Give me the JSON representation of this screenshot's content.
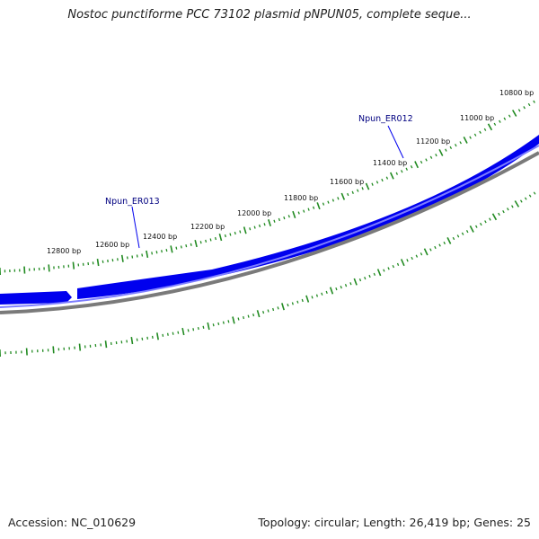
{
  "title": "Nostoc punctiforme PCC 73102 plasmid pNPUN05, complete seque...",
  "accession": "Accession: NC_010629",
  "summary": "Topology: circular; Length: 26,419 bp; Genes: 25",
  "colors": {
    "gene": "#0000ee",
    "gene_light": "#7d7dff",
    "backbone": "#7a7a7a",
    "ticks": "#228b22",
    "label": "#000080"
  },
  "ticks": [
    {
      "label": "10800 bp"
    },
    {
      "label": "11000 bp"
    },
    {
      "label": "11200 bp"
    },
    {
      "label": "11400 bp"
    },
    {
      "label": "11600 bp"
    },
    {
      "label": "11800 bp"
    },
    {
      "label": "12000 bp"
    },
    {
      "label": "12200 bp"
    },
    {
      "label": "12400 bp"
    },
    {
      "label": "12600 bp"
    },
    {
      "label": "12800 bp"
    }
  ],
  "genes": [
    {
      "name": "Npun_ER012"
    },
    {
      "name": "Npun_ER013"
    }
  ]
}
